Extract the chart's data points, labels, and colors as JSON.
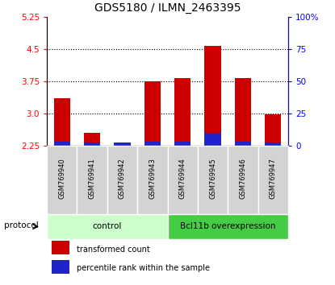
{
  "title": "GDS5180 / ILMN_2463395",
  "samples": [
    "GSM769940",
    "GSM769941",
    "GSM769942",
    "GSM769943",
    "GSM769944",
    "GSM769945",
    "GSM769946",
    "GSM769947"
  ],
  "transformed_counts": [
    3.35,
    2.55,
    2.28,
    3.75,
    3.82,
    4.57,
    3.82,
    2.97
  ],
  "percentile_ranks": [
    3,
    2,
    2,
    3,
    3,
    10,
    3,
    2
  ],
  "ylim_left": [
    2.25,
    5.25
  ],
  "ylim_right": [
    0,
    100
  ],
  "yticks_left": [
    2.25,
    3.0,
    3.75,
    4.5,
    5.25
  ],
  "yticks_right": [
    0,
    25,
    50,
    75,
    100
  ],
  "ytick_labels_right": [
    "0",
    "25",
    "50",
    "75",
    "100%"
  ],
  "bar_color_red": "#cc0000",
  "bar_color_blue": "#2222cc",
  "bar_width": 0.55,
  "control_samples": 4,
  "control_label": "control",
  "treatment_label": "Bcl11b overexpression",
  "protocol_label": "protocol",
  "control_bg": "#ccffcc",
  "treatment_bg": "#44cc44",
  "legend_red_label": "transformed count",
  "legend_blue_label": "percentile rank within the sample",
  "tick_label_fontsize": 7.5,
  "title_fontsize": 10,
  "bar_bottom": 2.25,
  "sample_label_fontsize": 6.0,
  "protocol_fontsize": 7.5,
  "legend_fontsize": 7.0
}
